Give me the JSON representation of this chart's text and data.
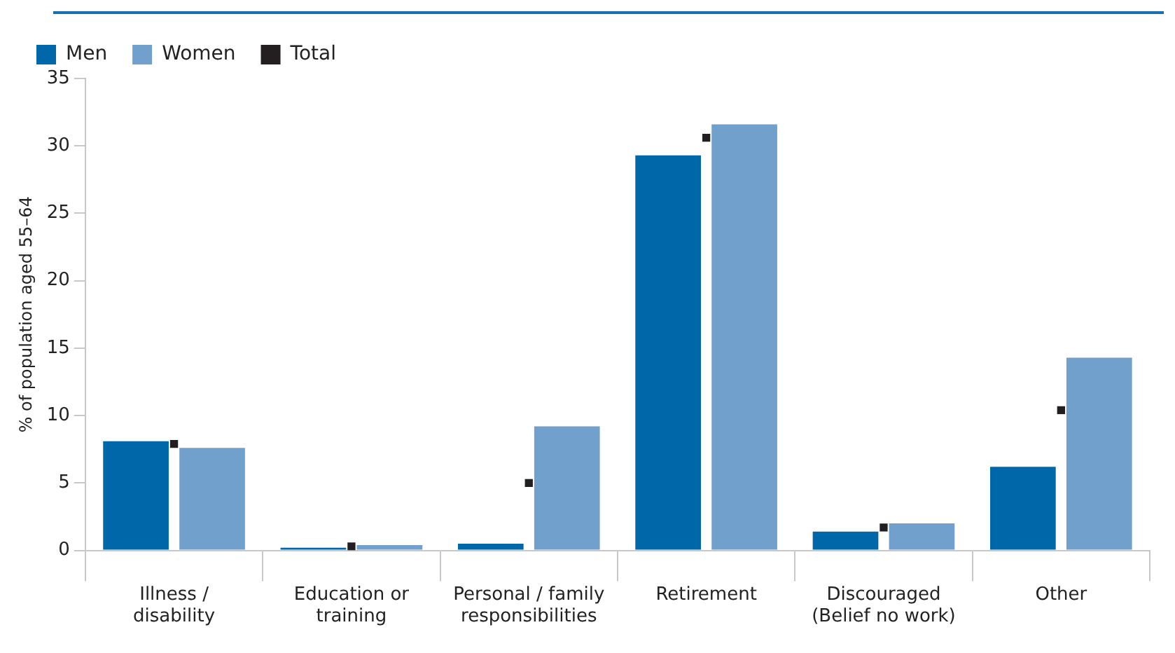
{
  "chart_data": {
    "type": "bar",
    "ylabel": "% of population aged 55–64",
    "categories": [
      "Illness / disability",
      "Education or training",
      "Personal / family responsibilities",
      "Retirement",
      "Discouraged (Belief no work)",
      "Other"
    ],
    "series": [
      {
        "name": "Men",
        "color": "#0067a8",
        "values": [
          8.1,
          0.2,
          0.5,
          29.3,
          1.4,
          6.2
        ]
      },
      {
        "name": "Women",
        "color": "#72a0cc",
        "values": [
          7.6,
          0.4,
          9.2,
          31.6,
          2.0,
          14.3
        ]
      },
      {
        "name": "Total",
        "type": "scatter",
        "color": "#231f20",
        "x": [
          "Illness / disability",
          "Education or training",
          "Personal / family responsibilities",
          "Retirement",
          "Discouraged (Belief no work)",
          "Other"
        ],
        "values": [
          7.9,
          0.3,
          5.0,
          30.6,
          1.7,
          10.4
        ]
      }
    ],
    "ylim": [
      0,
      35
    ],
    "yticks": [
      0,
      5,
      10,
      15,
      20,
      25,
      30,
      35
    ],
    "legend": "top left"
  }
}
